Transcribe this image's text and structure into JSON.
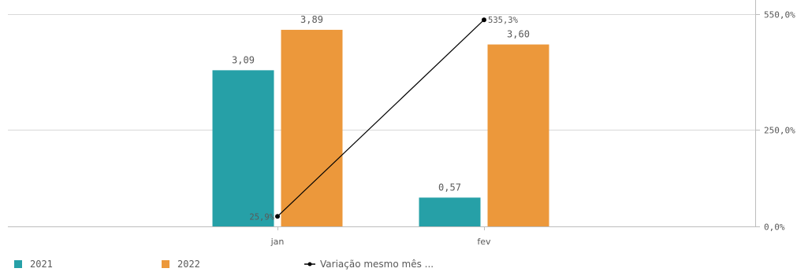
{
  "chart_data": {
    "type": "bar",
    "categories": [
      "jan",
      "fev"
    ],
    "series": [
      {
        "name": "2021",
        "type": "bar",
        "axis": "left",
        "values": [
          3.09,
          0.57
        ],
        "labels": [
          "3,09",
          "0,57"
        ],
        "color": "#26a0a7"
      },
      {
        "name": "2022",
        "type": "bar",
        "axis": "left",
        "values": [
          3.89,
          3.6
        ],
        "labels": [
          "3,89",
          "3,60"
        ],
        "color": "#ec983b"
      },
      {
        "name": "Variação mesmo mês ...",
        "type": "line",
        "axis": "right",
        "values": [
          25.9,
          535.3
        ],
        "labels": [
          "25,9%",
          "535,3%"
        ],
        "color": "#000000"
      }
    ],
    "left_axis": {
      "ylim": [
        0,
        4.2
      ],
      "visible": false
    },
    "right_axis": {
      "ylim": [
        0,
        550
      ],
      "ticks": [
        0,
        250,
        550
      ],
      "tick_labels": [
        "0,0%",
        "250,0%",
        "550,0%"
      ]
    },
    "grid": true,
    "legend": "bottom-left"
  }
}
